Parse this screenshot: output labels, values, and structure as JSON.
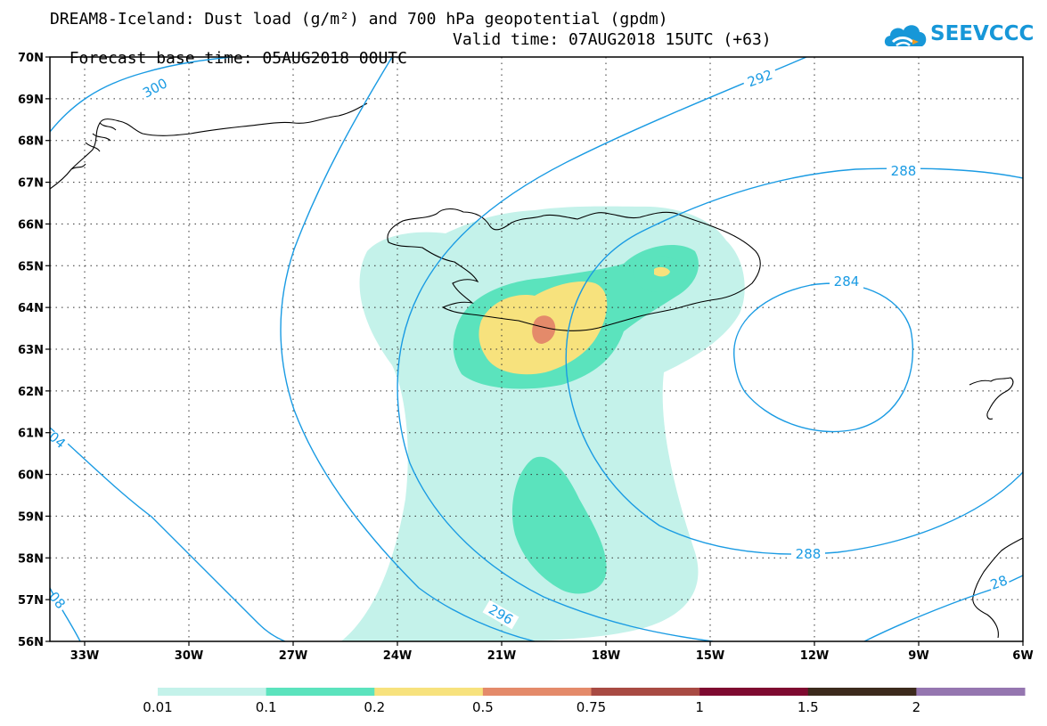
{
  "title": {
    "line1": "DREAM8-Iceland: Dust load (g/m²) and 700 hPa geopotential (gpdm)",
    "base_time": "Forecast base time: 05AUG2018 00UTC",
    "valid_time": "Valid time: 07AUG2018 15UTC (+63)"
  },
  "logo": {
    "text": "SEEVCCC",
    "icon": "cloud-icon"
  },
  "map": {
    "lon_range": [
      -34,
      -6
    ],
    "lat_range": [
      56,
      70
    ],
    "lon_ticks": [
      {
        "value": -33,
        "label": "33W"
      },
      {
        "value": -30,
        "label": "30W"
      },
      {
        "value": -27,
        "label": "27W"
      },
      {
        "value": -24,
        "label": "24W"
      },
      {
        "value": -21,
        "label": "21W"
      },
      {
        "value": -18,
        "label": "18W"
      },
      {
        "value": -15,
        "label": "15W"
      },
      {
        "value": -12,
        "label": "12W"
      },
      {
        "value": -9,
        "label": "9W"
      },
      {
        "value": -6,
        "label": "6W"
      }
    ],
    "lat_ticks": [
      {
        "value": 70,
        "label": "70N"
      },
      {
        "value": 69,
        "label": "69N"
      },
      {
        "value": 68,
        "label": "68N"
      },
      {
        "value": 67,
        "label": "67N"
      },
      {
        "value": 66,
        "label": "66N"
      },
      {
        "value": 65,
        "label": "65N"
      },
      {
        "value": 64,
        "label": "64N"
      },
      {
        "value": 63,
        "label": "63N"
      },
      {
        "value": 62,
        "label": "62N"
      },
      {
        "value": 61,
        "label": "61N"
      },
      {
        "value": 60,
        "label": "60N"
      },
      {
        "value": 59,
        "label": "59N"
      },
      {
        "value": 58,
        "label": "58N"
      },
      {
        "value": 57,
        "label": "57N"
      },
      {
        "value": 56,
        "label": "56N"
      }
    ],
    "contour_labels": [
      "300",
      "292",
      "288",
      "284",
      "288",
      "296",
      "04",
      "08",
      "28"
    ],
    "contour_color": "#1a9be3"
  },
  "colorbar": {
    "colors": [
      "#c4f2ea",
      "#5be3bd",
      "#f7e27d",
      "#e48a6a",
      "#a84a43",
      "#7e0a30",
      "#3c2a1c",
      "#9576b0"
    ],
    "labels": [
      "0.01",
      "0.1",
      "0.2",
      "0.5",
      "0.75",
      "1",
      "1.5",
      "2"
    ]
  }
}
